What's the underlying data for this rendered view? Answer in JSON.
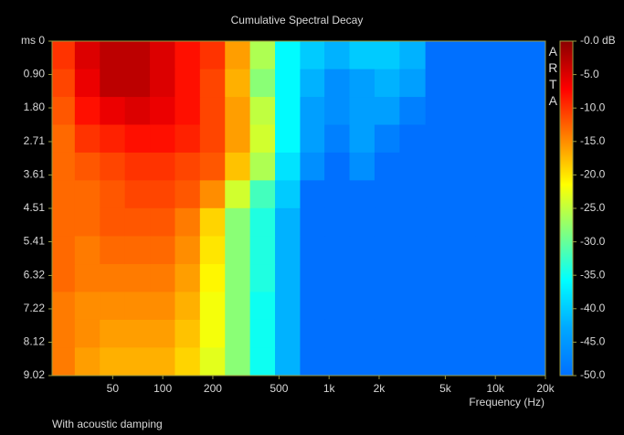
{
  "chart_data": {
    "type": "heatmap",
    "title": "Cumulative Spectral Decay",
    "subtitle": "With acoustic damping",
    "watermark": "ARTA",
    "xlabel": "Frequency (Hz)",
    "xscale": "log",
    "xlim": [
      21.6,
      20000
    ],
    "xticks": [
      50,
      100,
      200,
      500,
      {
        "value": 1000,
        "label": "1k"
      },
      {
        "value": 2000,
        "label": "2k"
      },
      {
        "value": 5000,
        "label": "5k"
      },
      {
        "value": 10000,
        "label": "10k"
      },
      {
        "value": 20000,
        "label": "20k"
      }
    ],
    "ylim": [
      0,
      9.02
    ],
    "yticks": [
      {
        "value": 0,
        "label": "ms 0"
      },
      {
        "value": 0.9,
        "label": "0.90"
      },
      {
        "value": 1.8,
        "label": "1.80"
      },
      2.71,
      3.61,
      4.51,
      5.41,
      6.32,
      7.22,
      8.12,
      9.02
    ],
    "clim": [
      -50,
      0
    ],
    "cticks": [
      {
        "value": 0,
        "label": "-0.0 dB"
      },
      {
        "value": -5,
        "label": "-5.0"
      },
      {
        "value": -10,
        "label": "-10.0"
      },
      {
        "value": -15,
        "label": "-15.0"
      },
      {
        "value": -20,
        "label": "-20.0"
      },
      {
        "value": -25,
        "label": "-25.0"
      },
      {
        "value": -30,
        "label": "-30.0"
      },
      {
        "value": -35,
        "label": "-35.0"
      },
      {
        "value": -40,
        "label": "-40.0"
      },
      {
        "value": -45,
        "label": "-45.0"
      },
      {
        "value": -50,
        "label": "-50.0"
      }
    ],
    "colormap": [
      "#0070ff",
      "#00a8ff",
      "#00ffff",
      "#80ff80",
      "#ffff00",
      "#ff8000",
      "#ff0000",
      "#8b0000"
    ],
    "x": [
      25,
      35,
      50,
      70,
      100,
      140,
      200,
      280,
      400,
      560,
      800,
      1100,
      1600,
      2200,
      3200,
      4500,
      6300,
      9000,
      12500,
      17500
    ],
    "y": [
      0.38,
      1.13,
      1.88,
      2.63,
      3.38,
      4.13,
      4.88,
      5.64,
      6.39,
      7.14,
      7.89,
      8.64
    ],
    "z": [
      [
        -10,
        -5,
        -3,
        -3,
        -5,
        -8,
        -10,
        -16,
        -26,
        -36,
        -40,
        -42,
        -40,
        -40,
        -42,
        -50,
        -50,
        -50,
        -50,
        -50
      ],
      [
        -11,
        -6,
        -3,
        -3,
        -5,
        -8,
        -11,
        -17,
        -28,
        -36,
        -42,
        -46,
        -44,
        -42,
        -44,
        -50,
        -50,
        -50,
        -50,
        -50
      ],
      [
        -12,
        -8,
        -6,
        -5,
        -6,
        -8,
        -11,
        -16,
        -25,
        -36,
        -44,
        -46,
        -44,
        -44,
        -48,
        -50,
        -50,
        -50,
        -50,
        -50
      ],
      [
        -13,
        -10,
        -9,
        -8,
        -8,
        -9,
        -11,
        -16,
        -24,
        -36,
        -44,
        -48,
        -44,
        -48,
        -50,
        -50,
        -50,
        -50,
        -50,
        -50
      ],
      [
        -13,
        -12,
        -11,
        -10,
        -10,
        -11,
        -12,
        -18,
        -26,
        -38,
        -46,
        -50,
        -46,
        -50,
        -50,
        -50,
        -50,
        -50,
        -50,
        -50
      ],
      [
        -13,
        -13,
        -12,
        -11,
        -11,
        -12,
        -15,
        -24,
        -32,
        -40,
        -50,
        -50,
        -50,
        -50,
        -50,
        -50,
        -50,
        -50,
        -50,
        -50
      ],
      [
        -13,
        -13,
        -12,
        -12,
        -12,
        -14,
        -19,
        -28,
        -34,
        -42,
        -50,
        -50,
        -50,
        -50,
        -50,
        -50,
        -50,
        -50,
        -50,
        -50
      ],
      [
        -13,
        -14,
        -13,
        -13,
        -13,
        -15,
        -20,
        -28,
        -34,
        -42,
        -50,
        -50,
        -50,
        -50,
        -50,
        -50,
        -50,
        -50,
        -50,
        -50
      ],
      [
        -13,
        -14,
        -14,
        -14,
        -14,
        -16,
        -21,
        -28,
        -34,
        -42,
        -50,
        -50,
        -50,
        -50,
        -50,
        -50,
        -50,
        -50,
        -50,
        -50
      ],
      [
        -14,
        -15,
        -15,
        -15,
        -15,
        -17,
        -22,
        -28,
        -35,
        -42,
        -50,
        -50,
        -50,
        -50,
        -50,
        -50,
        -50,
        -50,
        -50,
        -50
      ],
      [
        -14,
        -15,
        -16,
        -16,
        -16,
        -18,
        -22,
        -28,
        -35,
        -42,
        -50,
        -50,
        -50,
        -50,
        -50,
        -50,
        -50,
        -50,
        -50,
        -50
      ],
      [
        -14,
        -16,
        -17,
        -17,
        -17,
        -19,
        -23,
        -28,
        -35,
        -42,
        -50,
        -50,
        -50,
        -50,
        -50,
        -50,
        -50,
        -50,
        -50,
        -50
      ]
    ]
  }
}
